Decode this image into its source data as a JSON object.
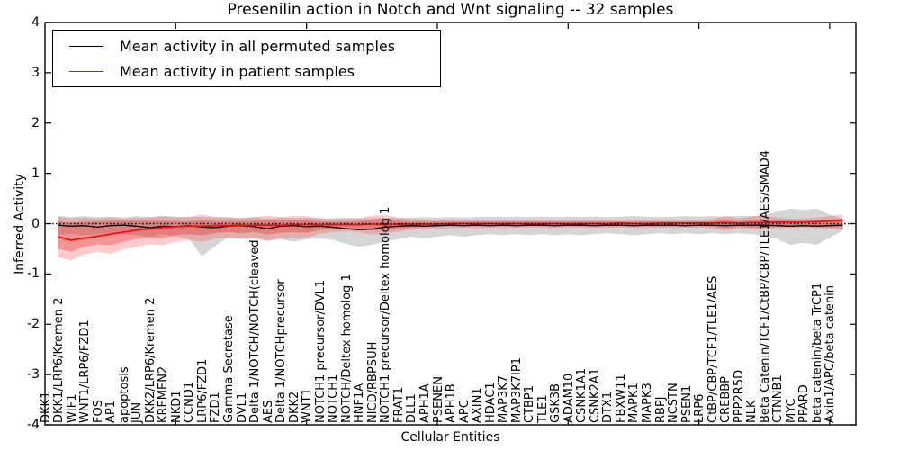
{
  "title": "Presenilin action in Notch and Wnt signaling -- 32 samples",
  "legend": {
    "items": [
      {
        "label": "Mean activity in all permuted samples",
        "color": "#000000"
      },
      {
        "label": "Mean activity in patient samples",
        "color": "#ff0000"
      }
    ]
  },
  "axes": {
    "ylabel": "Inferred Activity",
    "xlabel": "Cellular Entities",
    "yticks": [
      -4,
      -3,
      -2,
      -1,
      0,
      1,
      2,
      3,
      4
    ],
    "ylim": [
      -4,
      4
    ]
  },
  "colors": {
    "black_line": "#000000",
    "red_line": "#ee1111",
    "gray_band": "rgba(145,145,145,0.38)",
    "red_band_outer": "rgba(255,55,55,0.26)",
    "red_band_inner": "rgba(230,40,40,0.34)",
    "zero_line": "#000000"
  },
  "chart_data": {
    "type": "line",
    "title": "Presenilin action in Notch and Wnt signaling -- 32 samples",
    "xlabel": "Cellular Entities",
    "ylabel": "Inferred Activity",
    "ylim": [
      -4,
      4
    ],
    "grid": false,
    "legend_position": "upper left",
    "x_major_tick_indices": [
      9,
      19,
      29,
      39,
      49,
      59
    ],
    "categories": [
      "DKK1",
      "DKK1/LRP6/Kremen 2",
      "WIF1",
      "WNT1/LRP6/FZD1",
      "FOS",
      "AP1",
      "apoptosis",
      "JUN",
      "DKK2/LRP6/Kremen 2",
      "KREMEN2",
      "NKD1",
      "CCND1",
      "LRP6/FZD1",
      "FZD1",
      "Gamma Secretase",
      "DVL1",
      "Delta 1/NOTCH/NOTCH(cleaved",
      "AES",
      "Delta 1/NOTCHprecursor",
      "DKK2",
      "WNT1",
      "NOTCH1 precursor/DVL1",
      "NOTCH1",
      "NOTCH/Deltex homolog 1",
      "HNF1A",
      "NICD/RBPSUH",
      "NOTCH1 precursor/Deltex homolog 1",
      "FRAT1",
      "DLL1",
      "APH1A",
      "PSENEN",
      "APH1B",
      "APC",
      "AXIN1",
      "HDAC1",
      "MAP3K7",
      "MAP3K7IP1",
      "CTBP1",
      "TLE1",
      "GSK3B",
      "ADAM10",
      "CSNK1A1",
      "CSNK2A1",
      "DTX1",
      "FBXW11",
      "MAPK1",
      "MAPK3",
      "RBPJ",
      "NCSTN",
      "PSEN1",
      "LRP6",
      "CtBP/CBP/TCF1/TLE1/AES",
      "CREBBP",
      "PPP2R5D",
      "NLK",
      "Beta Catenin/TCF1/CtBP/CBP/TLE1/AES/SMAD4",
      "CTNNB1",
      "MYC",
      "PPARD",
      "beta catenin/beta TrCP1",
      "Axin1/APC/beta catenin"
    ],
    "series": [
      {
        "name": "Mean activity in all permuted samples",
        "values": [
          -0.03,
          -0.05,
          -0.04,
          -0.07,
          -0.04,
          -0.03,
          -0.05,
          -0.08,
          -0.05,
          -0.06,
          -0.04,
          -0.07,
          -0.08,
          -0.05,
          -0.04,
          -0.06,
          -0.1,
          -0.05,
          -0.04,
          -0.06,
          -0.05,
          -0.07,
          -0.1,
          -0.12,
          -0.11,
          -0.07,
          -0.05,
          -0.04,
          -0.05,
          -0.04,
          -0.03,
          -0.04,
          -0.03,
          -0.04,
          -0.03,
          -0.04,
          -0.03,
          -0.03,
          -0.04,
          -0.03,
          -0.03,
          -0.04,
          -0.03,
          -0.03,
          -0.04,
          -0.03,
          -0.03,
          -0.03,
          -0.04,
          -0.03,
          -0.03,
          -0.04,
          -0.03,
          -0.03,
          -0.03,
          -0.04,
          -0.05,
          -0.04,
          -0.05,
          -0.04,
          -0.03
        ]
      },
      {
        "name": "Mean activity in patient samples",
        "values": [
          -0.26,
          -0.33,
          -0.29,
          -0.25,
          -0.21,
          -0.17,
          -0.13,
          -0.1,
          -0.08,
          -0.06,
          -0.05,
          -0.05,
          -0.04,
          -0.04,
          -0.03,
          -0.03,
          -0.03,
          -0.03,
          -0.02,
          -0.02,
          -0.02,
          -0.02,
          -0.02,
          -0.02,
          -0.01,
          -0.02,
          -0.01,
          -0.01,
          -0.01,
          -0.01,
          0,
          0,
          0,
          0,
          0,
          0,
          0,
          0,
          0,
          0,
          0,
          0,
          0,
          0.01,
          0,
          0,
          0.01,
          0.01,
          0.01,
          0.01,
          0.01,
          0.02,
          0.01,
          0.02,
          0.02,
          0.03,
          0.03,
          0.03,
          0.04,
          0.05,
          0.06
        ]
      }
    ],
    "bands": {
      "gray": {
        "upper": [
          0.16,
          0.13,
          0.15,
          0.13,
          0.14,
          0.12,
          0.15,
          0.13,
          0.16,
          0.14,
          0.13,
          0.14,
          0.12,
          0.13,
          0.11,
          0.13,
          0.1,
          0.12,
          0.11,
          0.12,
          0.1,
          0.11,
          0.12,
          0.1,
          0.11,
          0.12,
          0.11,
          0.12,
          0.13,
          0.12,
          0.13,
          0.12,
          0.13,
          0.14,
          0.13,
          0.14,
          0.13,
          0.14,
          0.13,
          0.14,
          0.13,
          0.14,
          0.13,
          0.14,
          0.15,
          0.14,
          0.13,
          0.14,
          0.15,
          0.14,
          0.15,
          0.14,
          0.16,
          0.15,
          0.17,
          0.24,
          0.3,
          0.27,
          0.3,
          0.18,
          0.1
        ],
        "lower": [
          -0.22,
          -0.2,
          -0.23,
          -0.21,
          -0.19,
          -0.21,
          -0.23,
          -0.26,
          -0.21,
          -0.26,
          -0.31,
          -0.65,
          -0.45,
          -0.27,
          -0.31,
          -0.29,
          -0.34,
          -0.31,
          -0.36,
          -0.31,
          -0.29,
          -0.32,
          -0.4,
          -0.46,
          -0.42,
          -0.36,
          -0.31,
          -0.26,
          -0.29,
          -0.26,
          -0.23,
          -0.26,
          -0.23,
          -0.21,
          -0.23,
          -0.21,
          -0.23,
          -0.21,
          -0.23,
          -0.21,
          -0.23,
          -0.21,
          -0.19,
          -0.21,
          -0.23,
          -0.21,
          -0.19,
          -0.21,
          -0.19,
          -0.21,
          -0.19,
          -0.21,
          -0.19,
          -0.21,
          -0.23,
          -0.31,
          -0.42,
          -0.38,
          -0.42,
          -0.28,
          -0.14
        ]
      },
      "red_outer": {
        "upper": [
          0.14,
          0.1,
          0.12,
          0.1,
          0.12,
          0.1,
          0.11,
          0.12,
          0.14,
          0.12,
          0.14,
          0.18,
          0.14,
          0.12,
          0.11,
          0.13,
          0.16,
          0.13,
          0.15,
          0.15,
          0.11,
          0.09,
          0.09,
          0.11,
          0.16,
          0.17,
          0.12,
          0.09,
          0.08,
          0.08,
          0.08,
          0.07,
          0.08,
          0.07,
          0.08,
          0.07,
          0.08,
          0.07,
          0.08,
          0.07,
          0.08,
          0.07,
          0.08,
          0.07,
          0.08,
          0.07,
          0.08,
          0.08,
          0.08,
          0.08,
          0.09,
          0.16,
          0.1,
          0.14,
          0.16,
          0.12,
          0.1,
          0.1,
          0.12,
          0.15,
          0.18
        ],
        "lower": [
          -0.67,
          -0.73,
          -0.61,
          -0.56,
          -0.6,
          -0.51,
          -0.46,
          -0.41,
          -0.43,
          -0.36,
          -0.33,
          -0.36,
          -0.3,
          -0.28,
          -0.3,
          -0.28,
          -0.34,
          -0.29,
          -0.27,
          -0.29,
          -0.2,
          -0.17,
          -0.15,
          -0.17,
          -0.22,
          -0.2,
          -0.16,
          -0.12,
          -0.1,
          -0.1,
          -0.09,
          -0.08,
          -0.09,
          -0.08,
          -0.08,
          -0.08,
          -0.08,
          -0.08,
          -0.08,
          -0.08,
          -0.08,
          -0.08,
          -0.08,
          -0.08,
          -0.08,
          -0.08,
          -0.08,
          -0.08,
          -0.08,
          -0.08,
          -0.09,
          -0.13,
          -0.09,
          -0.11,
          -0.11,
          -0.09,
          -0.08,
          -0.08,
          -0.09,
          -0.1,
          -0.11
        ]
      },
      "red_inner": {
        "upper": [
          0.05,
          0.02,
          0.04,
          0.05,
          0.06,
          0.06,
          0.06,
          0.06,
          0.06,
          0.05,
          0.05,
          0.07,
          0.05,
          0.05,
          0.05,
          0.06,
          0.08,
          0.06,
          0.07,
          0.07,
          0.05,
          0.04,
          0.04,
          0.05,
          0.08,
          0.09,
          0.06,
          0.04,
          0.04,
          0.04,
          0.04,
          0.04,
          0.04,
          0.04,
          0.04,
          0.04,
          0.04,
          0.04,
          0.04,
          0.04,
          0.04,
          0.04,
          0.04,
          0.04,
          0.04,
          0.04,
          0.04,
          0.04,
          0.04,
          0.04,
          0.05,
          0.08,
          0.05,
          0.07,
          0.08,
          0.06,
          0.05,
          0.05,
          0.06,
          0.08,
          0.1
        ],
        "lower": [
          -0.5,
          -0.56,
          -0.46,
          -0.41,
          -0.43,
          -0.36,
          -0.31,
          -0.27,
          -0.29,
          -0.23,
          -0.21,
          -0.23,
          -0.19,
          -0.17,
          -0.19,
          -0.17,
          -0.22,
          -0.18,
          -0.17,
          -0.18,
          -0.13,
          -0.1,
          -0.09,
          -0.11,
          -0.14,
          -0.12,
          -0.1,
          -0.08,
          -0.06,
          -0.06,
          -0.05,
          -0.05,
          -0.05,
          -0.05,
          -0.05,
          -0.05,
          -0.05,
          -0.05,
          -0.05,
          -0.05,
          -0.05,
          -0.05,
          -0.05,
          -0.05,
          -0.05,
          -0.05,
          -0.05,
          -0.05,
          -0.05,
          -0.05,
          -0.06,
          -0.09,
          -0.06,
          -0.08,
          -0.08,
          -0.06,
          -0.06,
          -0.06,
          -0.06,
          -0.07,
          -0.08
        ]
      }
    },
    "zero_reference_line": 0
  }
}
